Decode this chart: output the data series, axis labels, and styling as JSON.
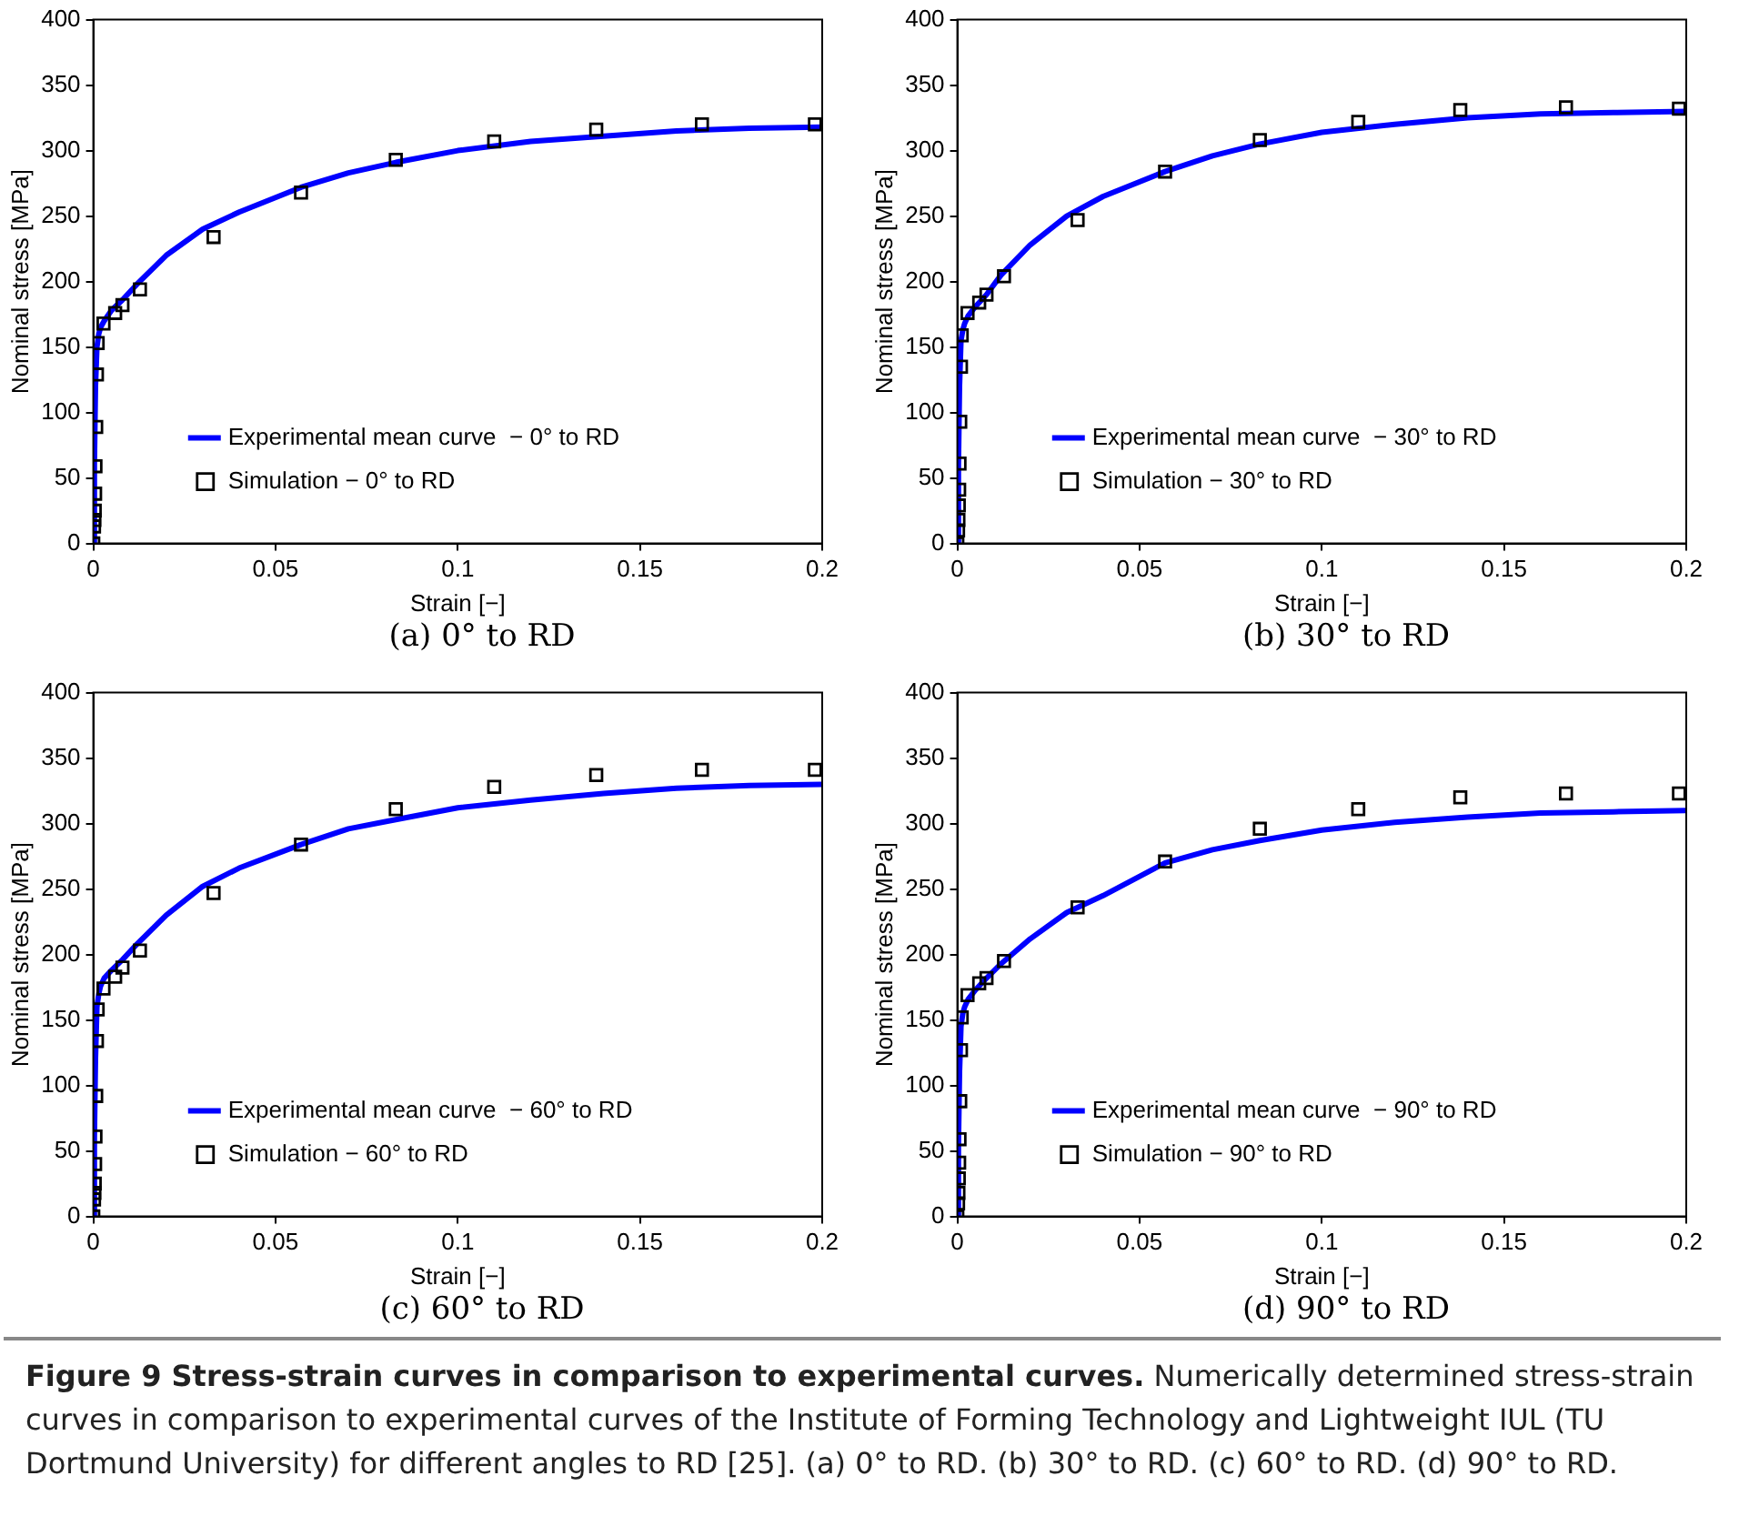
{
  "chart_data": [
    {
      "type": "line",
      "subtitle": "(a)  0° to RD",
      "xlabel": "Strain [−]",
      "ylabel": "Nominal stress [MPa]",
      "xlim": [
        0,
        0.2
      ],
      "xticks": [
        0,
        0.05,
        0.1,
        0.15,
        0.2
      ],
      "ylim": [
        0,
        400
      ],
      "yticks": [
        0,
        50,
        100,
        150,
        200,
        250,
        300,
        350,
        400
      ],
      "legend": "bottom",
      "series": [
        {
          "name": "Experimental mean curve  − 0° to RD",
          "type": "line",
          "color": "#0000ff",
          "marker": "none",
          "x": [
            0,
            0.0003,
            0.0006,
            0.001,
            0.0015,
            0.002,
            0.003,
            0.005,
            0.008,
            0.012,
            0.02,
            0.03,
            0.04,
            0.057,
            0.07,
            0.083,
            0.1,
            0.12,
            0.14,
            0.16,
            0.18,
            0.2
          ],
          "values": [
            0,
            60,
            120,
            150,
            160,
            165,
            170,
            178,
            186,
            198,
            220,
            240,
            253,
            272,
            283,
            291,
            300,
            307,
            311,
            315,
            317,
            318
          ]
        },
        {
          "name": "Simulation − 0° to RD",
          "type": "scatter",
          "color": "#000000",
          "marker": "square",
          "x": [
            0,
            0.0001,
            0.0002,
            0.0003,
            0.0004,
            0.0005,
            0.0006,
            0.0008,
            0.001,
            0.0012,
            0.0028,
            0.006,
            0.008,
            0.0128,
            0.033,
            0.057,
            0.083,
            0.11,
            0.138,
            0.167,
            0.198
          ],
          "values": [
            0,
            null,
            13,
            18,
            25,
            38,
            59,
            89,
            129,
            153,
            168,
            176,
            182,
            194,
            234,
            268,
            293,
            307,
            316,
            320,
            320
          ]
        }
      ]
    },
    {
      "type": "line",
      "subtitle": "(b) 30° to RD",
      "xlabel": "Strain [−]",
      "ylabel": "Nominal stress [MPa]",
      "xlim": [
        0,
        0.2
      ],
      "xticks": [
        0,
        0.05,
        0.1,
        0.15,
        0.2
      ],
      "ylim": [
        0,
        400
      ],
      "yticks": [
        0,
        50,
        100,
        150,
        200,
        250,
        300,
        350,
        400
      ],
      "legend": "bottom",
      "series": [
        {
          "name": "Experimental mean curve  − 30° to RD",
          "type": "line",
          "color": "#0000ff",
          "marker": "none",
          "x": [
            0,
            0.0003,
            0.0006,
            0.001,
            0.0015,
            0.002,
            0.003,
            0.005,
            0.008,
            0.012,
            0.02,
            0.03,
            0.04,
            0.057,
            0.07,
            0.083,
            0.1,
            0.12,
            0.14,
            0.16,
            0.18,
            0.2
          ],
          "values": [
            0,
            60,
            120,
            155,
            163,
            168,
            174,
            181,
            190,
            205,
            228,
            250,
            265,
            284,
            296,
            305,
            314,
            320,
            325,
            328,
            329,
            330
          ]
        },
        {
          "name": "Simulation − 30° to RD",
          "type": "scatter",
          "color": "#000000",
          "marker": "square",
          "x": [
            0,
            0.0001,
            0.0002,
            0.0003,
            0.0004,
            0.0005,
            0.0006,
            0.0008,
            0.001,
            0.0012,
            0.0028,
            0.006,
            0.008,
            0.0128,
            0.033,
            0.057,
            0.083,
            0.11,
            0.138,
            0.167,
            0.198
          ],
          "values": [
            0,
            null,
            10,
            18,
            29,
            41,
            61,
            93,
            135,
            159,
            176,
            184,
            190,
            204,
            247,
            284,
            308,
            322,
            331,
            333,
            332
          ]
        }
      ]
    },
    {
      "type": "line",
      "subtitle": "(c) 60° to RD",
      "xlabel": "Strain [−]",
      "ylabel": "Nominal stress [MPa]",
      "xlim": [
        0,
        0.2
      ],
      "xticks": [
        0,
        0.05,
        0.1,
        0.15,
        0.2
      ],
      "ylim": [
        0,
        400
      ],
      "yticks": [
        0,
        50,
        100,
        150,
        200,
        250,
        300,
        350,
        400
      ],
      "legend": "bottom",
      "series": [
        {
          "name": "Experimental mean curve  − 60° to RD",
          "type": "line",
          "color": "#0000ff",
          "marker": "none",
          "x": [
            0,
            0.0003,
            0.0006,
            0.001,
            0.0015,
            0.002,
            0.003,
            0.005,
            0.008,
            0.012,
            0.02,
            0.03,
            0.04,
            0.057,
            0.07,
            0.083,
            0.1,
            0.12,
            0.14,
            0.16,
            0.18,
            0.2
          ],
          "values": [
            0,
            60,
            120,
            160,
            170,
            176,
            182,
            188,
            196,
            208,
            230,
            252,
            266,
            284,
            296,
            303,
            312,
            318,
            323,
            327,
            329,
            330
          ]
        },
        {
          "name": "Simulation − 60° to RD",
          "type": "scatter",
          "color": "#000000",
          "marker": "square",
          "x": [
            0,
            0.0001,
            0.0002,
            0.0003,
            0.0004,
            0.0005,
            0.0006,
            0.0008,
            0.001,
            0.0012,
            0.0028,
            0.006,
            0.008,
            0.0128,
            0.033,
            0.057,
            0.083,
            0.11,
            0.138,
            0.167,
            0.198
          ],
          "values": [
            0,
            null,
            13,
            18,
            25,
            40,
            61,
            92,
            134,
            158,
            174,
            183,
            190,
            203,
            247,
            284,
            311,
            328,
            337,
            341,
            341
          ]
        }
      ]
    },
    {
      "type": "line",
      "subtitle": "(d) 90° to RD",
      "xlabel": "Strain [−]",
      "ylabel": "Nominal stress [MPa]",
      "xlim": [
        0,
        0.2
      ],
      "xticks": [
        0,
        0.05,
        0.1,
        0.15,
        0.2
      ],
      "ylim": [
        0,
        400
      ],
      "yticks": [
        0,
        50,
        100,
        150,
        200,
        250,
        300,
        350,
        400
      ],
      "legend": "bottom",
      "series": [
        {
          "name": "Experimental mean curve  − 90° to RD",
          "type": "line",
          "color": "#0000ff",
          "marker": "none",
          "x": [
            0,
            0.0003,
            0.0006,
            0.001,
            0.0015,
            0.002,
            0.003,
            0.005,
            0.008,
            0.012,
            0.02,
            0.03,
            0.04,
            0.057,
            0.07,
            0.083,
            0.1,
            0.12,
            0.14,
            0.16,
            0.18,
            0.2
          ],
          "values": [
            0,
            55,
            110,
            145,
            155,
            160,
            166,
            173,
            182,
            193,
            212,
            232,
            245,
            270,
            280,
            287,
            295,
            301,
            305,
            308,
            309,
            310
          ]
        },
        {
          "name": "Simulation − 90° to RD",
          "type": "scatter",
          "color": "#000000",
          "marker": "square",
          "x": [
            0,
            0.0001,
            0.0002,
            0.0003,
            0.0004,
            0.0005,
            0.0006,
            0.0008,
            0.001,
            0.0012,
            0.0028,
            0.006,
            0.008,
            0.0128,
            0.033,
            0.057,
            0.083,
            0.11,
            0.138,
            0.167,
            0.198
          ],
          "values": [
            0,
            null,
            10,
            18,
            29,
            41,
            59,
            88,
            127,
            152,
            169,
            178,
            182,
            195,
            236,
            271,
            296,
            311,
            320,
            323,
            323
          ]
        }
      ]
    },
    {
      "type": "other",
      "title": "Figure 9 Stress-strain curves in comparison to experimental curves.",
      "annotations": [
        "Numerically determined stress-strain curves in comparison to experimental curves of the Institute of Forming Technology and Lightweight IUL (TU Dortmund University) for different angles to RD [25]. (a) 0° to RD. (b) 30° to RD. (c) 60° to RD. (d) 90° to RD."
      ]
    }
  ]
}
